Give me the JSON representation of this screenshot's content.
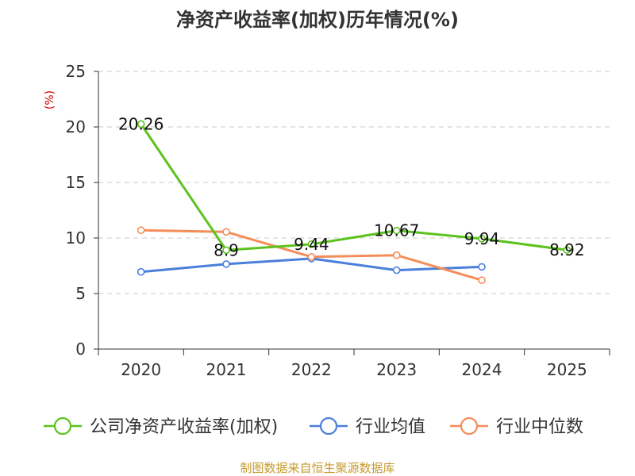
{
  "colors": {
    "company": "#5cc31e",
    "industry_avg": "#4a7fdc",
    "industry_median": "#f58d5a",
    "unit": "#cc0000",
    "source": "#c69a2e",
    "grid": "#c8c8c8",
    "axis": "#333333"
  },
  "chart_data": {
    "type": "line",
    "title": "净资产收益率(加权)历年情况(%)",
    "ylabel": "(%)",
    "xlabel": "",
    "categories": [
      "2020",
      "2021",
      "2022",
      "2023",
      "2024",
      "2025"
    ],
    "ylim": [
      0,
      25
    ],
    "yticks": [
      0,
      5,
      10,
      15,
      20,
      25
    ],
    "grid": true,
    "legend_position": "bottom",
    "series": [
      {
        "name": "公司净资产收益率(加权)",
        "values": [
          20.26,
          8.9,
          9.44,
          10.67,
          9.94,
          8.92
        ],
        "labels": [
          "20.26",
          "8.9",
          "9.44",
          "10.67",
          "9.94",
          "8.92"
        ],
        "color": "#5cc31e",
        "show_labels": true
      },
      {
        "name": "行业均值",
        "values": [
          6.95,
          7.65,
          8.15,
          7.1,
          7.4,
          null
        ],
        "color": "#4a7fdc",
        "show_labels": false
      },
      {
        "name": "行业中位数",
        "values": [
          10.7,
          10.55,
          8.3,
          8.45,
          6.2,
          null
        ],
        "color": "#f58d5a",
        "show_labels": false
      }
    ],
    "source": "制图数据来自恒生聚源数据库"
  }
}
